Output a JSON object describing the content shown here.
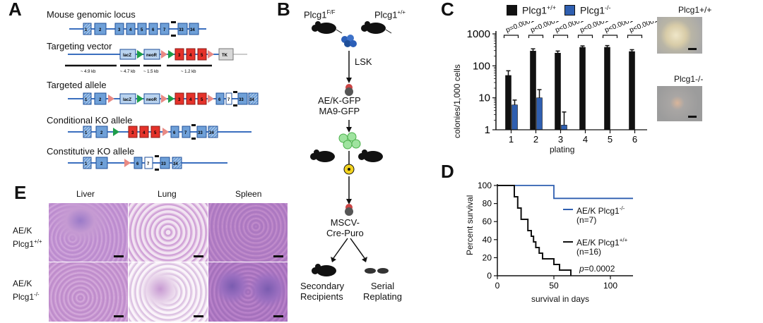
{
  "panel_a": {
    "letter": "A",
    "rows": [
      {
        "title": "Mouse genomic locus",
        "exons": [
          "1",
          "2",
          "3",
          "4",
          "5",
          "6",
          "7",
          "33",
          "34"
        ]
      },
      {
        "title": "Targeting vector",
        "boxes": [
          "lacZ",
          "neoR",
          "3",
          "4",
          "5",
          "TK"
        ],
        "scale": [
          "~ 4.9 kb",
          "~ 4.7 kb",
          "~ 1.5 kb",
          "~ 1.2 kb"
        ]
      },
      {
        "title": "Targeted allele",
        "boxes": [
          "1",
          "2",
          "lacZ",
          "neoR",
          "3",
          "4",
          "5",
          "6",
          "7",
          "33",
          "34"
        ]
      },
      {
        "title": "Conditional KO allele",
        "exons": [
          "1",
          "2",
          "3",
          "4",
          "5",
          "6",
          "7",
          "33",
          "34"
        ]
      },
      {
        "title": "Constitutive KO allele",
        "exons": [
          "1",
          "2",
          "6",
          "7",
          "33",
          "34"
        ]
      }
    ]
  },
  "panel_b": {
    "letter": "B",
    "mouse_left": "Plcg1",
    "mouse_left_sup": "F/F",
    "mouse_right": "Plcg1",
    "mouse_right_sup": "+/+",
    "step1": "LSK",
    "step2_line1": "AE/K-GFP",
    "step2_line2": "MA9-GFP",
    "step3_line1": "MSCV-",
    "step3_line2": "Cre-Puro",
    "out_left_line1": "Secondary",
    "out_left_line2": "Recipients",
    "out_right_line1": "Serial",
    "out_right_line2": "Replating"
  },
  "panel_c": {
    "letter": "C",
    "legend_wt": "Plcg1",
    "legend_wt_sup": "+/+",
    "legend_ko": "Plcg1",
    "legend_ko_sup": "-/-",
    "photo_top_label": "Plcg1+/+",
    "photo_bottom_label": "Plcg1-/-",
    "chart_data": {
      "type": "bar",
      "title": "",
      "xlabel": "plating",
      "ylabel": "colonies/1,000 cells",
      "scale": "log",
      "ylim": [
        1,
        1000
      ],
      "yticks": [
        "1",
        "10",
        "100",
        "1000"
      ],
      "categories": [
        "1",
        "2",
        "3",
        "4",
        "5",
        "6"
      ],
      "series": [
        {
          "name": "Plcg1+/+",
          "color": "#111111",
          "values": [
            50,
            290,
            250,
            380,
            380,
            280
          ],
          "errors": [
            70,
            340,
            290,
            420,
            430,
            320
          ]
        },
        {
          "name": "Plcg1-/-",
          "color": "#2f5fb0",
          "values": [
            6,
            10,
            1.4,
            1,
            1,
            1
          ],
          "errors": [
            8.5,
            18,
            3.6,
            1,
            1,
            1
          ]
        }
      ],
      "pvalues": [
        "p=0.0001",
        "p<0.0001",
        "p<0.0001",
        "p<0.0001",
        "p<0.0001",
        "p<0.0001"
      ]
    }
  },
  "panel_d": {
    "letter": "D",
    "legend_ko_line1": "AE/K Plcg1",
    "legend_ko_sup": "-/-",
    "legend_ko_line2": "(n=7)",
    "legend_wt_line1": "AE/K Plcg1",
    "legend_wt_sup": "+/+",
    "legend_wt_line2": "(n=16)",
    "pvalue_italic": "p",
    "pvalue_rest": "=0.0002",
    "chart_data": {
      "type": "line",
      "title": "",
      "xlabel": "survival in days",
      "ylabel": "Percent survival",
      "xlim": [
        0,
        120
      ],
      "ylim": [
        0,
        100
      ],
      "xticks": [
        "0",
        "50",
        "100"
      ],
      "yticks": [
        "0",
        "20",
        "40",
        "60",
        "80",
        "100"
      ],
      "series": [
        {
          "name": "AE/K Plcg1-/- (n=7)",
          "color": "#2f5fb0",
          "steps": [
            [
              0,
              100
            ],
            [
              50,
              100
            ],
            [
              50,
              85.7
            ],
            [
              120,
              85.7
            ]
          ]
        },
        {
          "name": "AE/K Plcg1+/+ (n=16)",
          "color": "#111111",
          "steps": [
            [
              0,
              100
            ],
            [
              15,
              100
            ],
            [
              15,
              87.5
            ],
            [
              18,
              87.5
            ],
            [
              18,
              75
            ],
            [
              21,
              75
            ],
            [
              21,
              62.5
            ],
            [
              27,
              62.5
            ],
            [
              27,
              50
            ],
            [
              30,
              50
            ],
            [
              30,
              43.75
            ],
            [
              32,
              43.75
            ],
            [
              32,
              37.5
            ],
            [
              34,
              37.5
            ],
            [
              34,
              31.25
            ],
            [
              37,
              31.25
            ],
            [
              37,
              25
            ],
            [
              40,
              25
            ],
            [
              40,
              18.75
            ],
            [
              50,
              18.75
            ],
            [
              50,
              12.5
            ],
            [
              55,
              12.5
            ],
            [
              55,
              6.25
            ],
            [
              65,
              6.25
            ],
            [
              65,
              0
            ]
          ]
        }
      ]
    }
  },
  "panel_e": {
    "letter": "E",
    "columns": [
      "Liver",
      "Lung",
      "Spleen"
    ],
    "row1_line1": "AE/K",
    "row1_line2": "Plcg1",
    "row1_sup": "+/+",
    "row2_line1": "AE/K",
    "row2_line2": "Plcg1",
    "row2_sup": "-/-"
  }
}
